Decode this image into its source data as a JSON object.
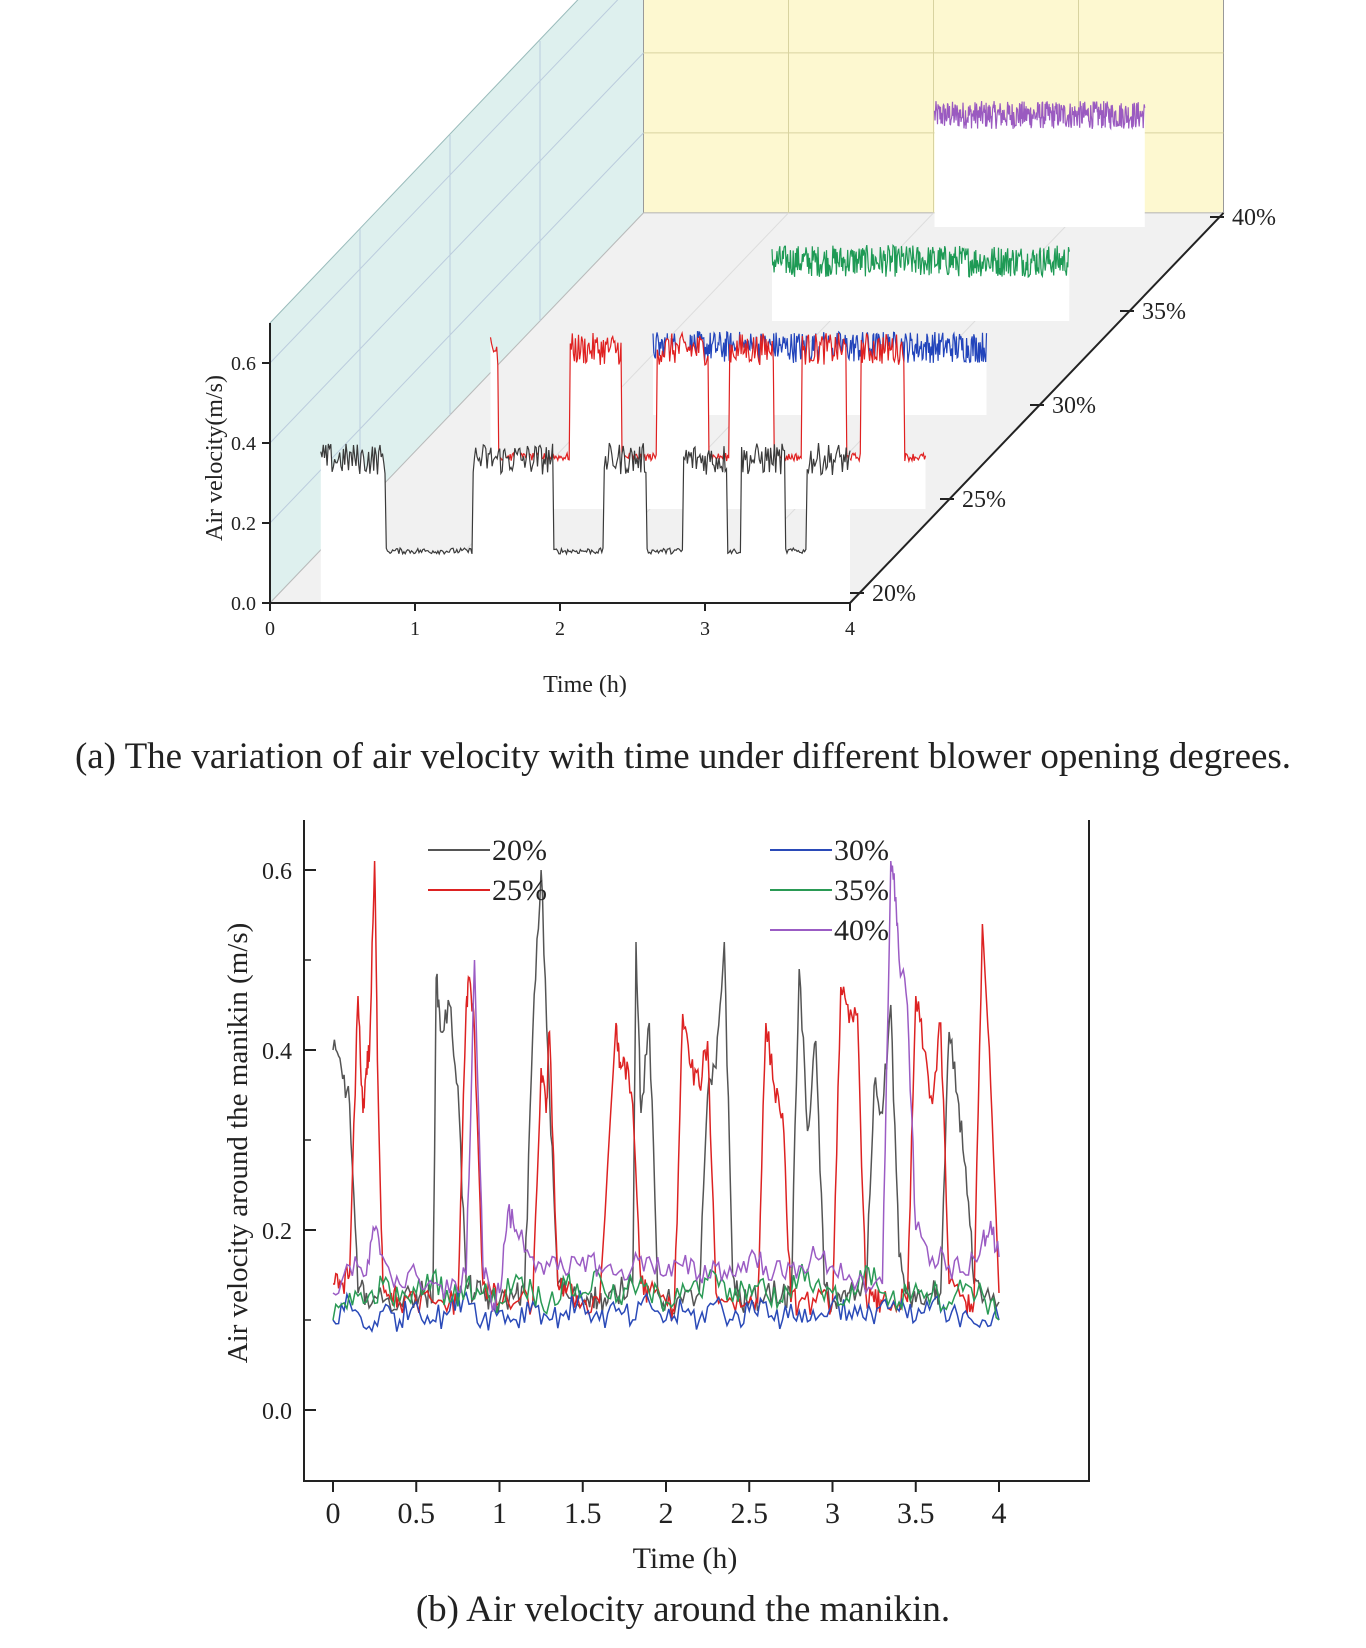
{
  "chart_data": [
    {
      "id": "a",
      "type": "line",
      "title": "",
      "caption": "(a) The variation of air velocity with time under different blower opening degrees.",
      "xlabel": "Time (h)",
      "ylabel": "Air velocity(m/s)",
      "x_ticks": [
        "0",
        "1",
        "2",
        "3",
        "4"
      ],
      "y_ticks": [
        "0.0",
        "0.2",
        "0.4",
        "0.6"
      ],
      "z_ticks": [
        "20%",
        "25%",
        "30%",
        "35%",
        "40%"
      ],
      "xlim": [
        0,
        4
      ],
      "ylim": [
        0,
        0.7
      ],
      "colors": {
        "20%": "#3a3a3a",
        "25%": "#e02020",
        "30%": "#2244bb",
        "35%": "#1e9a55",
        "40%": "#9a5ac0",
        "back_wall": "#fdf8d0",
        "side_wall": "#def0ee"
      }
    },
    {
      "id": "b",
      "type": "line",
      "title": "",
      "caption": "(b) Air velocity around the manikin.",
      "xlabel": "Time (h)",
      "ylabel": "Air velocity around the manikin (m/s)",
      "x_ticks": [
        "0",
        "0.5",
        "1",
        "1.5",
        "2",
        "2.5",
        "3",
        "3.5",
        "4"
      ],
      "y_ticks": [
        "0.0",
        "0.2",
        "0.4",
        "0.6"
      ],
      "xlim": [
        0,
        4
      ],
      "ylim": [
        0,
        0.7
      ],
      "legend": [
        "20%",
        "25%",
        "30%",
        "35%",
        "40%"
      ],
      "legend_position": "top",
      "series": [
        {
          "name": "20%",
          "color": "#555555",
          "x": [
            0.0,
            0.05,
            0.1,
            0.15,
            0.2,
            0.3,
            0.4,
            0.5,
            0.55,
            0.6,
            0.62,
            0.65,
            0.7,
            0.75,
            0.8,
            0.85,
            0.9,
            0.95,
            1.0,
            1.1,
            1.15,
            1.2,
            1.25,
            1.3,
            1.35,
            1.4,
            1.5,
            1.55,
            1.6,
            1.65,
            1.7,
            1.8,
            1.82,
            1.85,
            1.9,
            1.95,
            2.0,
            2.1,
            2.2,
            2.25,
            2.3,
            2.35,
            2.4,
            2.45,
            2.5,
            2.6,
            2.7,
            2.75,
            2.8,
            2.85,
            2.9,
            2.95,
            3.0,
            3.05,
            3.1,
            3.2,
            3.25,
            3.3,
            3.35,
            3.4,
            3.45,
            3.5,
            3.6,
            3.65,
            3.7,
            3.75,
            3.8,
            3.85,
            3.9,
            4.0
          ],
          "y": [
            0.4,
            0.38,
            0.34,
            0.13,
            0.13,
            0.12,
            0.12,
            0.13,
            0.13,
            0.12,
            0.48,
            0.42,
            0.45,
            0.36,
            0.14,
            0.13,
            0.13,
            0.12,
            0.12,
            0.13,
            0.13,
            0.42,
            0.6,
            0.35,
            0.14,
            0.13,
            0.12,
            0.13,
            0.12,
            0.12,
            0.13,
            0.14,
            0.52,
            0.33,
            0.43,
            0.13,
            0.12,
            0.12,
            0.13,
            0.35,
            0.38,
            0.52,
            0.15,
            0.12,
            0.12,
            0.13,
            0.13,
            0.12,
            0.49,
            0.31,
            0.41,
            0.14,
            0.12,
            0.12,
            0.13,
            0.13,
            0.36,
            0.33,
            0.45,
            0.17,
            0.13,
            0.12,
            0.13,
            0.13,
            0.42,
            0.35,
            0.27,
            0.14,
            0.12,
            0.12
          ]
        },
        {
          "name": "25%",
          "color": "#dd2222",
          "x": [
            0.0,
            0.05,
            0.1,
            0.15,
            0.18,
            0.2,
            0.22,
            0.25,
            0.27,
            0.3,
            0.35,
            0.4,
            0.5,
            0.6,
            0.7,
            0.75,
            0.8,
            0.82,
            0.85,
            0.9,
            0.95,
            1.0,
            1.1,
            1.2,
            1.25,
            1.28,
            1.3,
            1.35,
            1.4,
            1.5,
            1.6,
            1.7,
            1.72,
            1.75,
            1.8,
            1.85,
            1.9,
            2.0,
            2.05,
            2.1,
            2.15,
            2.2,
            2.25,
            2.3,
            2.4,
            2.5,
            2.55,
            2.6,
            2.65,
            2.7,
            2.75,
            2.8,
            2.9,
            3.0,
            3.05,
            3.1,
            3.15,
            3.2,
            3.25,
            3.3,
            3.4,
            3.45,
            3.5,
            3.55,
            3.6,
            3.65,
            3.7,
            3.8,
            3.85,
            3.9,
            3.95,
            4.0
          ],
          "y": [
            0.14,
            0.14,
            0.15,
            0.46,
            0.33,
            0.38,
            0.4,
            0.61,
            0.36,
            0.14,
            0.13,
            0.12,
            0.12,
            0.12,
            0.12,
            0.12,
            0.45,
            0.48,
            0.42,
            0.14,
            0.13,
            0.12,
            0.12,
            0.12,
            0.38,
            0.33,
            0.42,
            0.14,
            0.13,
            0.12,
            0.12,
            0.43,
            0.38,
            0.39,
            0.34,
            0.14,
            0.13,
            0.12,
            0.11,
            0.44,
            0.38,
            0.36,
            0.41,
            0.13,
            0.12,
            0.12,
            0.12,
            0.43,
            0.36,
            0.33,
            0.12,
            0.12,
            0.12,
            0.12,
            0.47,
            0.43,
            0.44,
            0.13,
            0.12,
            0.12,
            0.12,
            0.12,
            0.46,
            0.4,
            0.34,
            0.43,
            0.14,
            0.12,
            0.12,
            0.54,
            0.36,
            0.13
          ]
        },
        {
          "name": "30%",
          "color": "#2a4ab8",
          "x": [
            0.0,
            0.1,
            0.2,
            0.3,
            0.4,
            0.5,
            0.6,
            0.7,
            0.8,
            0.9,
            1.0,
            1.1,
            1.2,
            1.3,
            1.4,
            1.5,
            1.6,
            1.7,
            1.8,
            1.9,
            2.0,
            2.1,
            2.2,
            2.3,
            2.4,
            2.5,
            2.6,
            2.7,
            2.8,
            2.9,
            3.0,
            3.1,
            3.2,
            3.3,
            3.4,
            3.5,
            3.6,
            3.7,
            3.8,
            3.9,
            4.0
          ],
          "y": [
            0.1,
            0.12,
            0.09,
            0.11,
            0.1,
            0.12,
            0.1,
            0.11,
            0.13,
            0.1,
            0.11,
            0.1,
            0.12,
            0.1,
            0.11,
            0.12,
            0.1,
            0.11,
            0.1,
            0.12,
            0.1,
            0.11,
            0.1,
            0.12,
            0.1,
            0.11,
            0.12,
            0.1,
            0.11,
            0.1,
            0.12,
            0.11,
            0.1,
            0.12,
            0.11,
            0.1,
            0.12,
            0.1,
            0.11,
            0.1,
            0.1
          ]
        },
        {
          "name": "35%",
          "color": "#2a9a55",
          "x": [
            0.0,
            0.1,
            0.2,
            0.3,
            0.4,
            0.5,
            0.6,
            0.7,
            0.8,
            0.9,
            1.0,
            1.1,
            1.2,
            1.3,
            1.4,
            1.5,
            1.6,
            1.7,
            1.8,
            1.9,
            2.0,
            2.1,
            2.2,
            2.3,
            2.4,
            2.5,
            2.6,
            2.7,
            2.8,
            2.9,
            3.0,
            3.1,
            3.2,
            3.3,
            3.4,
            3.5,
            3.6,
            3.7,
            3.8,
            3.9,
            4.0
          ],
          "y": [
            0.1,
            0.13,
            0.12,
            0.14,
            0.12,
            0.13,
            0.15,
            0.12,
            0.14,
            0.13,
            0.12,
            0.15,
            0.13,
            0.12,
            0.14,
            0.13,
            0.15,
            0.12,
            0.14,
            0.13,
            0.12,
            0.14,
            0.13,
            0.15,
            0.12,
            0.14,
            0.13,
            0.12,
            0.15,
            0.14,
            0.13,
            0.12,
            0.16,
            0.13,
            0.12,
            0.14,
            0.13,
            0.12,
            0.14,
            0.13,
            0.1
          ]
        },
        {
          "name": "40%",
          "color": "#9b5cc4",
          "x": [
            0.0,
            0.1,
            0.2,
            0.25,
            0.3,
            0.4,
            0.5,
            0.6,
            0.7,
            0.8,
            0.85,
            0.9,
            0.95,
            1.0,
            1.05,
            1.1,
            1.2,
            1.3,
            1.4,
            1.5,
            1.6,
            1.7,
            1.8,
            1.9,
            2.0,
            2.1,
            2.2,
            2.3,
            2.4,
            2.5,
            2.6,
            2.7,
            2.8,
            2.9,
            3.0,
            3.1,
            3.2,
            3.3,
            3.35,
            3.38,
            3.4,
            3.45,
            3.5,
            3.6,
            3.7,
            3.8,
            3.9,
            3.95,
            4.0
          ],
          "y": [
            0.13,
            0.16,
            0.15,
            0.2,
            0.17,
            0.14,
            0.15,
            0.14,
            0.13,
            0.15,
            0.5,
            0.16,
            0.12,
            0.13,
            0.22,
            0.2,
            0.17,
            0.16,
            0.15,
            0.17,
            0.16,
            0.15,
            0.16,
            0.17,
            0.15,
            0.16,
            0.15,
            0.16,
            0.15,
            0.17,
            0.16,
            0.15,
            0.16,
            0.17,
            0.16,
            0.15,
            0.13,
            0.14,
            0.61,
            0.57,
            0.5,
            0.45,
            0.2,
            0.17,
            0.16,
            0.15,
            0.19,
            0.21,
            0.17
          ]
        }
      ]
    }
  ]
}
